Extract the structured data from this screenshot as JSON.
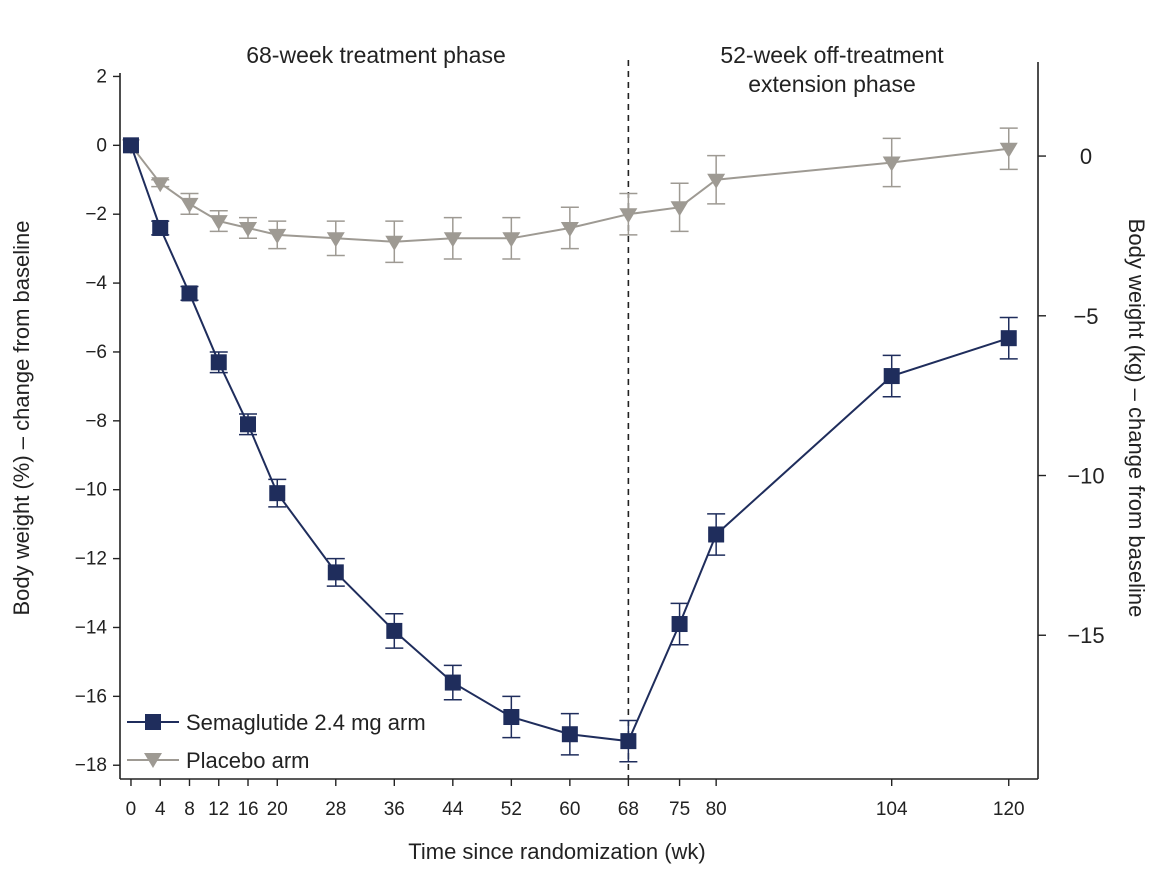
{
  "chart_data": {
    "type": "line",
    "xlabel": "Time since randomization (wk)",
    "ylabel": "Body weight (%) – change from baseline",
    "ylabel_right": "Body weight (kg) – change from baseline",
    "x_ticks": [
      0,
      4,
      8,
      12,
      16,
      20,
      28,
      36,
      44,
      52,
      60,
      68,
      75,
      80,
      104,
      120
    ],
    "x_tick_labels": [
      "0",
      "4",
      "8",
      "12",
      "16",
      "20",
      "28",
      "36",
      "44",
      "52",
      "60",
      "68",
      "75",
      "80",
      "104",
      "120"
    ],
    "xlim": [
      -1.5,
      124
    ],
    "y_ticks": [
      2,
      0,
      -2,
      -4,
      -6,
      -8,
      -10,
      -12,
      -14,
      -16,
      -18
    ],
    "y_tick_labels": [
      "2",
      "0",
      "−2",
      "−4",
      "−6",
      "−8",
      "−10",
      "−12",
      "−14",
      "−16",
      "−18"
    ],
    "ylim": [
      -18.4,
      2.1
    ],
    "y_right_ticks": [
      0,
      -5,
      -10,
      -15
    ],
    "y_right_tick_labels": [
      "0",
      "−5",
      "−10",
      "−15"
    ],
    "y_right_lim": [
      -19.5,
      2.6
    ],
    "phase_divider_x": 68,
    "phase_labels": [
      "68-week treatment phase",
      "52-week off-treatment extension phase"
    ],
    "legend_placement": "bottom-left",
    "series": [
      {
        "name": "Semaglutide 2.4 mg arm",
        "marker": "square",
        "color": "#1f2d5c",
        "x": [
          0,
          4,
          8,
          12,
          16,
          20,
          28,
          36,
          44,
          52,
          60,
          68,
          75,
          80,
          104,
          120
        ],
        "y": [
          0,
          -2.4,
          -4.3,
          -6.3,
          -8.1,
          -10.1,
          -12.4,
          -14.1,
          -15.6,
          -16.6,
          -17.1,
          -17.3,
          -13.9,
          -11.3,
          -6.7,
          -5.6
        ],
        "err": [
          0,
          0.2,
          0.2,
          0.3,
          0.3,
          0.4,
          0.4,
          0.5,
          0.5,
          0.6,
          0.6,
          0.6,
          0.6,
          0.6,
          0.6,
          0.6
        ]
      },
      {
        "name": "Placebo arm",
        "marker": "triangle-down",
        "color": "#9e9a93",
        "x": [
          0,
          4,
          8,
          12,
          16,
          20,
          28,
          36,
          44,
          52,
          60,
          68,
          75,
          80,
          104,
          120
        ],
        "y": [
          0,
          -1.1,
          -1.7,
          -2.2,
          -2.4,
          -2.6,
          -2.7,
          -2.8,
          -2.7,
          -2.7,
          -2.4,
          -2.0,
          -1.8,
          -1.0,
          -0.5,
          -0.1
        ],
        "err": [
          0,
          0.1,
          0.3,
          0.3,
          0.3,
          0.4,
          0.5,
          0.6,
          0.6,
          0.6,
          0.6,
          0.6,
          0.7,
          0.7,
          0.7,
          0.6
        ]
      }
    ]
  }
}
